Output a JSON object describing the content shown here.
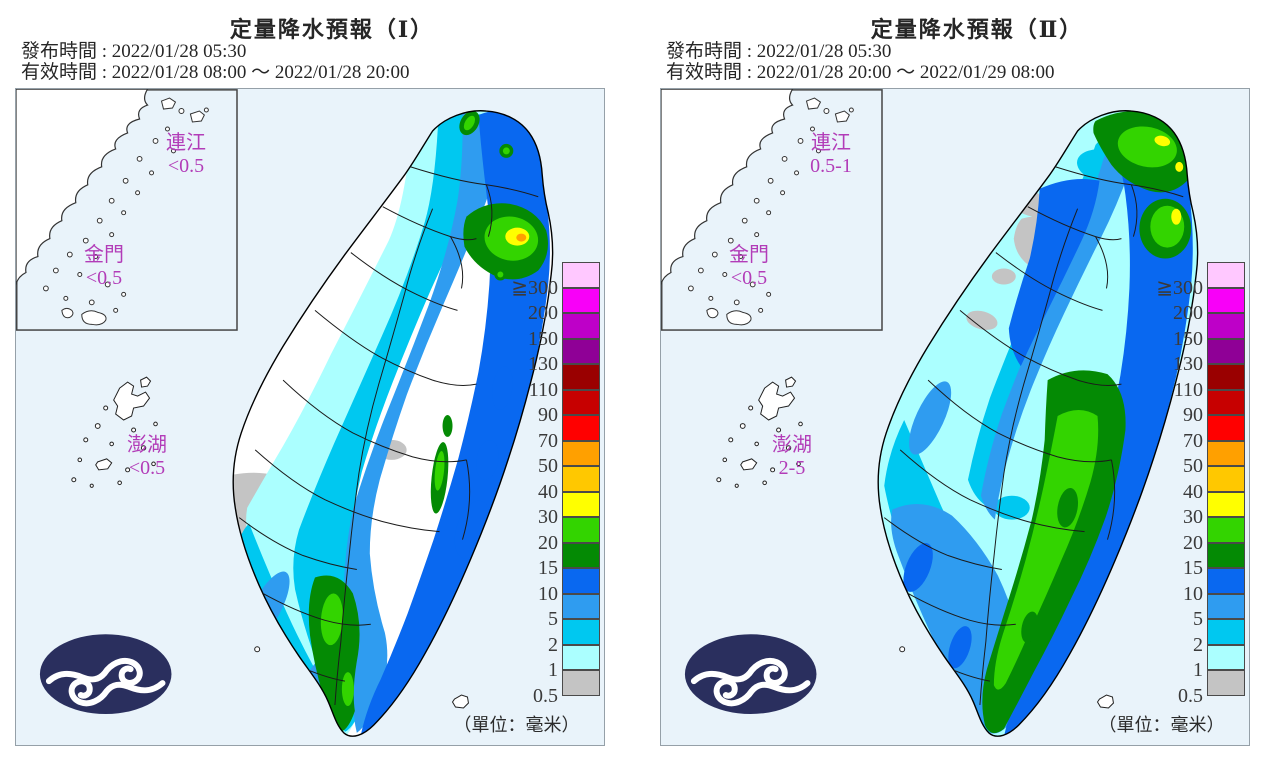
{
  "panels": [
    {
      "id": "qpf-1",
      "title": "定量降水預報（Ⅰ）",
      "issued": "發布時間 : 2022/01/28 05:30",
      "valid": "有效時間 : 2022/01/28 08:00 ～ 2022/01/28 20:00",
      "islands": [
        {
          "name": "連江",
          "value": "<0.5"
        },
        {
          "name": "金門",
          "value": "<0.5"
        },
        {
          "name": "澎湖",
          "value": "<0.5"
        }
      ],
      "unit": "（單位：毫米）"
    },
    {
      "id": "qpf-2",
      "title": "定量降水預報（Ⅱ）",
      "issued": "發布時間 : 2022/01/28 05:30",
      "valid": "有效時間 : 2022/01/28 20:00 ～ 2022/01/29 08:00",
      "islands": [
        {
          "name": "連江",
          "value": "0.5-1"
        },
        {
          "name": "金門",
          "value": "<0.5"
        },
        {
          "name": "澎湖",
          "value": "2-5"
        }
      ],
      "unit": "（單位：毫米）"
    }
  ],
  "legend": {
    "values": [
      "≧300",
      "200",
      "150",
      "130",
      "110",
      "90",
      "70",
      "50",
      "40",
      "30",
      "20",
      "15",
      "10",
      "5",
      "2",
      "1",
      "0.5"
    ],
    "colors": [
      "#FFC8FF",
      "#F800F8",
      "#BE00C8",
      "#8F0096",
      "#9A0000",
      "#C70000",
      "#FF0000",
      "#FFA000",
      "#FFC800",
      "#FFFF00",
      "#33D400",
      "#048A04",
      "#0968F0",
      "#2F9CF0",
      "#00C8F0",
      "#ABFFFF",
      "#C4C4C4"
    ]
  },
  "colors": {
    "sea": "#E9F3FA",
    "island_label": "#B23CB8",
    "logo_navy": "#2A2F5E",
    "coast_line": "#1b1b1b"
  }
}
